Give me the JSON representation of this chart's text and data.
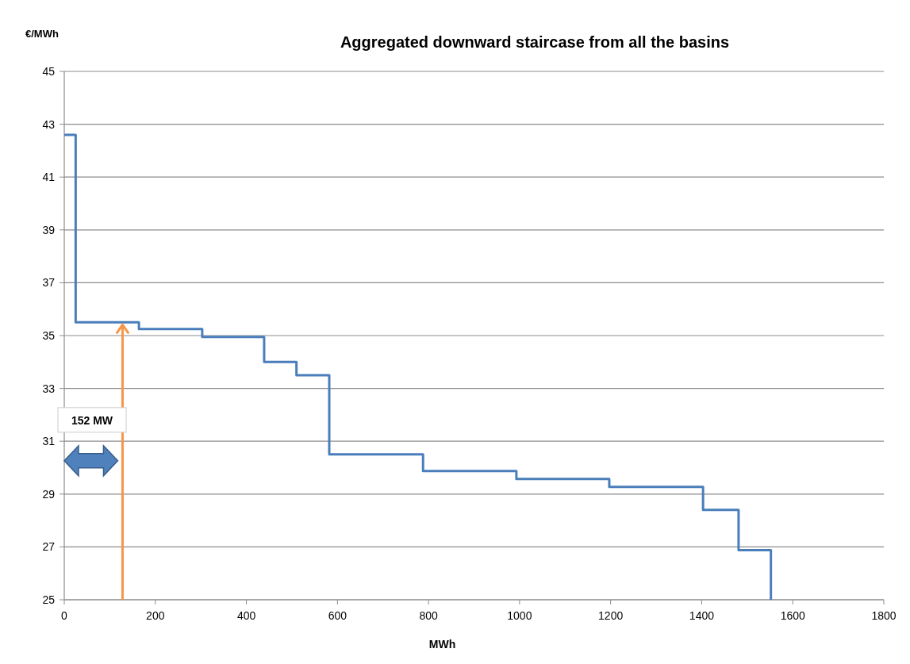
{
  "chart_data": {
    "type": "step",
    "title": "Aggregated downward staircase from all the basins",
    "xlabel": "MWh",
    "ylabel": "€/MWh",
    "x": [
      0,
      25,
      164,
      303,
      439,
      510,
      582,
      788,
      993,
      1197,
      1403,
      1481,
      1552
    ],
    "series": [
      {
        "color": "#4a7ebb",
        "values": [
          42.6,
          35.5,
          35.25,
          34.95,
          34.0,
          33.5,
          30.5,
          29.87,
          29.57,
          29.27,
          28.4,
          26.88,
          25
        ]
      }
    ],
    "ref_lines": [
      {
        "axis": "x",
        "value": 128,
        "label": "152 MW",
        "color": "#f79646"
      }
    ],
    "xlim": [
      0,
      1800
    ],
    "xticks": [
      0,
      200,
      400,
      600,
      800,
      1000,
      1200,
      1400,
      1600,
      1800
    ],
    "ylim": [
      25,
      45
    ],
    "yticks": [
      25,
      27,
      29,
      31,
      33,
      35,
      37,
      39,
      41,
      43,
      45
    ],
    "grid": "y",
    "line_style": "solid",
    "marker": "none"
  }
}
